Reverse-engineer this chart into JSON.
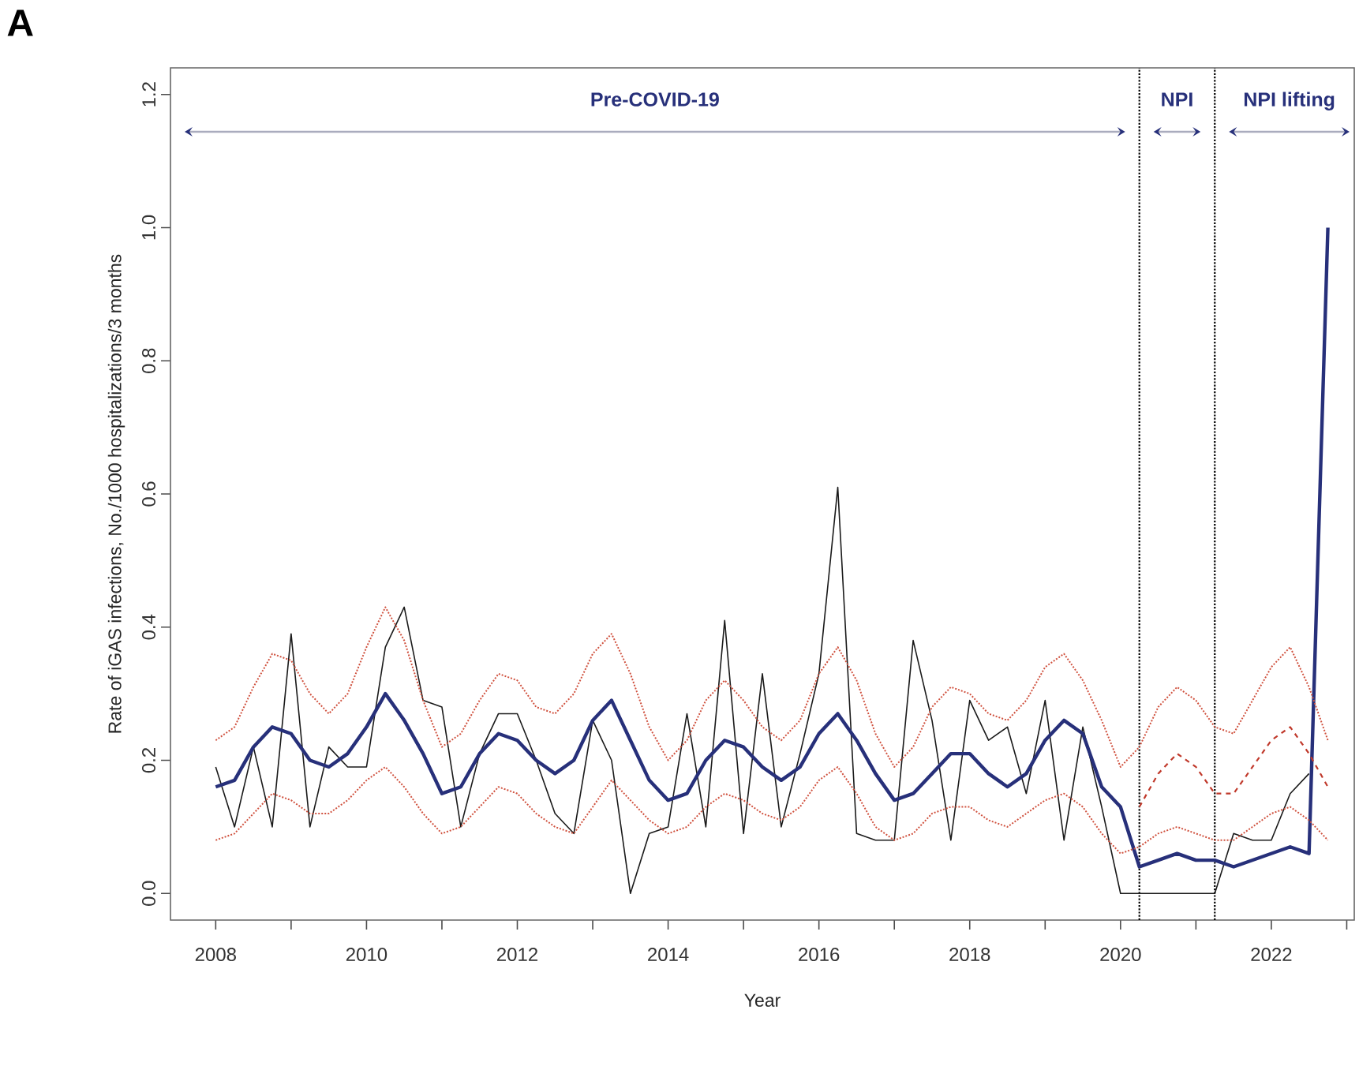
{
  "chart_data": {
    "type": "line",
    "title": "A",
    "xlabel": "Year",
    "ylabel": "Rate of iGAS infections, No./1000 hospitalizations/3 months",
    "x": [
      2008,
      2008.25,
      2008.5,
      2008.75,
      2009,
      2009.25,
      2009.5,
      2009.75,
      2010,
      2010.25,
      2010.5,
      2010.75,
      2011,
      2011.25,
      2011.5,
      2011.75,
      2012,
      2012.25,
      2012.5,
      2012.75,
      2013,
      2013.25,
      2013.5,
      2013.75,
      2014,
      2014.25,
      2014.5,
      2014.75,
      2015,
      2015.25,
      2015.5,
      2015.75,
      2016,
      2016.25,
      2016.5,
      2016.75,
      2017,
      2017.25,
      2017.5,
      2017.75,
      2018,
      2018.25,
      2018.5,
      2018.75,
      2019,
      2019.25,
      2019.5,
      2019.75,
      2020,
      2020.25,
      2020.5,
      2020.75,
      2021,
      2021.25,
      2021.5,
      2021.75,
      2022,
      2022.25,
      2022.5,
      2022.75
    ],
    "series": [
      {
        "color": "#1a1a1a",
        "line_style": "solid",
        "values": [
          0.19,
          0.1,
          0.22,
          0.1,
          0.39,
          0.1,
          0.22,
          0.19,
          0.19,
          0.37,
          0.43,
          0.29,
          0.28,
          0.1,
          0.21,
          0.27,
          0.27,
          0.2,
          0.12,
          0.09,
          0.26,
          0.2,
          0.0,
          0.09,
          0.1,
          0.27,
          0.1,
          0.41,
          0.09,
          0.33,
          0.1,
          0.21,
          0.33,
          0.61,
          0.09,
          0.08,
          0.08,
          0.38,
          0.26,
          0.08,
          0.29,
          0.23,
          0.25,
          0.15,
          0.29,
          0.08,
          0.25,
          0.13,
          0.0,
          0.0,
          0.0,
          0.0,
          0.0,
          0.0,
          0.09,
          0.08,
          0.08,
          0.15,
          0.18,
          null
        ]
      },
      {
        "color": "#27307a",
        "line_style": "solid",
        "values": [
          0.16,
          0.17,
          0.22,
          0.25,
          0.24,
          0.2,
          0.19,
          0.21,
          0.25,
          0.3,
          0.26,
          0.21,
          0.15,
          0.16,
          0.21,
          0.24,
          0.23,
          0.2,
          0.18,
          0.2,
          0.26,
          0.29,
          0.23,
          0.17,
          0.14,
          0.15,
          0.2,
          0.23,
          0.22,
          0.19,
          0.17,
          0.19,
          0.24,
          0.27,
          0.23,
          0.18,
          0.14,
          0.15,
          0.18,
          0.21,
          0.21,
          0.18,
          0.16,
          0.18,
          0.23,
          0.26,
          0.24,
          0.16,
          0.13,
          0.04,
          0.05,
          0.06,
          0.05,
          0.05,
          0.04,
          0.05,
          0.06,
          0.07,
          0.06,
          1.0
        ]
      },
      {
        "color": "#d0523f",
        "line_style": "dotted",
        "values": [
          0.23,
          0.25,
          0.31,
          0.36,
          0.35,
          0.3,
          0.27,
          0.3,
          0.37,
          0.43,
          0.38,
          0.29,
          0.22,
          0.24,
          0.29,
          0.33,
          0.32,
          0.28,
          0.27,
          0.3,
          0.36,
          0.39,
          0.33,
          0.25,
          0.2,
          0.23,
          0.29,
          0.32,
          0.29,
          0.25,
          0.23,
          0.26,
          0.33,
          0.37,
          0.32,
          0.24,
          0.19,
          0.22,
          0.28,
          0.31,
          0.3,
          0.27,
          0.26,
          0.29,
          0.34,
          0.36,
          0.32,
          0.26,
          0.19,
          0.22,
          0.28,
          0.31,
          0.29,
          0.25,
          0.24,
          0.29,
          0.34,
          0.37,
          0.31,
          0.23
        ]
      },
      {
        "color": "#d0523f",
        "line_style": "dotted",
        "values": [
          0.08,
          0.09,
          0.12,
          0.15,
          0.14,
          0.12,
          0.12,
          0.14,
          0.17,
          0.19,
          0.16,
          0.12,
          0.09,
          0.1,
          0.13,
          0.16,
          0.15,
          0.12,
          0.1,
          0.09,
          0.13,
          0.17,
          0.14,
          0.11,
          0.09,
          0.1,
          0.13,
          0.15,
          0.14,
          0.12,
          0.11,
          0.13,
          0.17,
          0.19,
          0.15,
          0.1,
          0.08,
          0.09,
          0.12,
          0.13,
          0.13,
          0.11,
          0.1,
          0.12,
          0.14,
          0.15,
          0.13,
          0.09,
          0.06,
          0.07,
          0.09,
          0.1,
          0.09,
          0.08,
          0.08,
          0.1,
          0.12,
          0.13,
          0.11,
          0.08
        ]
      },
      {
        "color": "#c0392b",
        "line_style": "dashed",
        "x": [
          2020.25,
          2020.5,
          2020.75,
          2021,
          2021.25,
          2021.5,
          2021.75,
          2022,
          2022.25,
          2022.5,
          2022.75
        ],
        "values": [
          0.13,
          0.18,
          0.21,
          0.19,
          0.15,
          0.15,
          0.19,
          0.23,
          0.25,
          0.21,
          0.16
        ]
      }
    ],
    "xlim": [
      2007.4,
      2023.1
    ],
    "ylim": [
      -0.04,
      1.24
    ],
    "xticks": [
      {
        "value": 2008,
        "label": "2008"
      },
      {
        "value": 2009,
        "label": null
      },
      {
        "value": 2010,
        "label": "2010"
      },
      {
        "value": 2011,
        "label": null
      },
      {
        "value": 2012,
        "label": "2012"
      },
      {
        "value": 2013,
        "label": null
      },
      {
        "value": 2014,
        "label": "2014"
      },
      {
        "value": 2015,
        "label": null
      },
      {
        "value": 2016,
        "label": "2016"
      },
      {
        "value": 2017,
        "label": null
      },
      {
        "value": 2018,
        "label": "2018"
      },
      {
        "value": 2019,
        "label": null
      },
      {
        "value": 2020,
        "label": "2020"
      },
      {
        "value": 2021,
        "label": null
      },
      {
        "value": 2022,
        "label": "2022"
      },
      {
        "value": 2023,
        "label": null
      }
    ],
    "yticks": [
      {
        "value": 0,
        "label": "0.0"
      },
      {
        "value": 0.2,
        "label": "0.2"
      },
      {
        "value": 0.4,
        "label": "0.4"
      },
      {
        "value": 0.6,
        "label": "0.6"
      },
      {
        "value": 0.8,
        "label": "0.8"
      },
      {
        "value": 1.0,
        "label": "1.0"
      },
      {
        "value": 1.2,
        "label": "1.2"
      }
    ],
    "ref_lines": [
      {
        "axis": "x",
        "value": 2020.25,
        "color": "#000000",
        "line_style": "dotted"
      },
      {
        "axis": "x",
        "value": 2021.25,
        "color": "#000000",
        "line_style": "dotted"
      }
    ],
    "annotations": [
      "Pre-COVID-19",
      "NPI",
      "NPI lifting"
    ],
    "marker": "none"
  }
}
